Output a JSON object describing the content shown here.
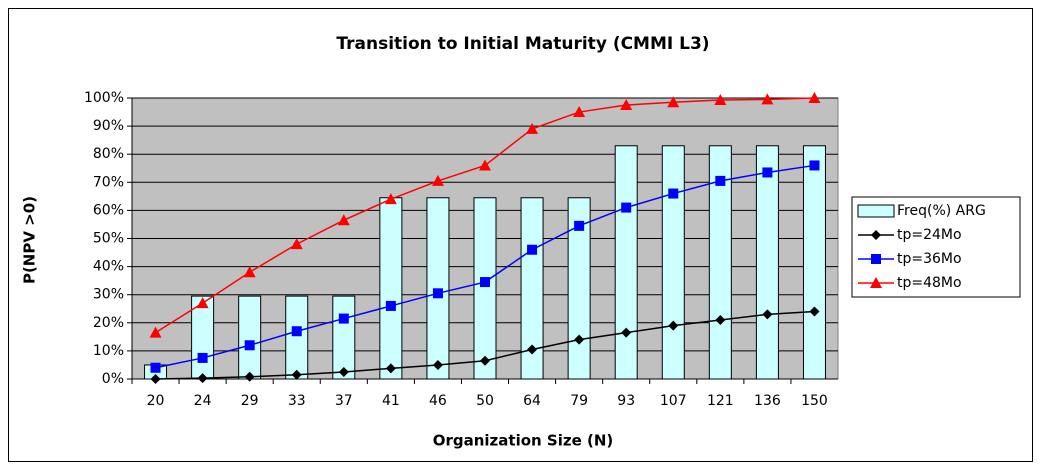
{
  "chart_data": {
    "type": "bar",
    "title": "Transition to Initial Maturity (CMMI L3)",
    "x_label": "Organization Size (N)",
    "y_label": "P(NPV >0)",
    "categories": [
      "20",
      "24",
      "29",
      "33",
      "37",
      "41",
      "46",
      "50",
      "64",
      "79",
      "93",
      "107",
      "121",
      "136",
      "150"
    ],
    "series": [
      {
        "name": "Freq(%) ARG",
        "type": "bar",
        "color": "#ccffff",
        "values": [
          5,
          29.5,
          29.5,
          29.5,
          29.5,
          64.5,
          64.5,
          64.5,
          64.5,
          64.5,
          83,
          83,
          83,
          83,
          83
        ]
      },
      {
        "name": "tp=24Mo",
        "type": "line",
        "marker": "diamond",
        "color": "#000000",
        "values": [
          0,
          0.3,
          0.8,
          1.5,
          2.5,
          3.8,
          5,
          6.5,
          10.5,
          14,
          16.5,
          19,
          21,
          23,
          24
        ]
      },
      {
        "name": "tp=36Mo",
        "type": "line",
        "marker": "square",
        "color": "#0000ff",
        "values": [
          4,
          7.5,
          12,
          17,
          21.5,
          26,
          30.5,
          34.5,
          46,
          54.5,
          61,
          66,
          70.5,
          73.5,
          76
        ]
      },
      {
        "name": "tp=48Mo",
        "type": "line",
        "marker": "triangle",
        "color": "#ff0000",
        "values": [
          16.5,
          27,
          38,
          48,
          56.5,
          64,
          70.5,
          76,
          89,
          95,
          97.5,
          98.5,
          99.3,
          99.5,
          100
        ]
      }
    ],
    "ylim": [
      0,
      100
    ],
    "yticks": [
      {
        "value": 0,
        "label": "0%"
      },
      {
        "value": 10,
        "label": "10%"
      },
      {
        "value": 20,
        "label": "20%"
      },
      {
        "value": 30,
        "label": "30%"
      },
      {
        "value": 40,
        "label": "40%"
      },
      {
        "value": 50,
        "label": "50%"
      },
      {
        "value": 60,
        "label": "60%"
      },
      {
        "value": 70,
        "label": "70%"
      },
      {
        "value": 80,
        "label": "80%"
      },
      {
        "value": 90,
        "label": "90%"
      },
      {
        "value": 100,
        "label": "100%"
      }
    ],
    "grid": true,
    "legend": "right",
    "plot_background": "#c0c0c0"
  }
}
